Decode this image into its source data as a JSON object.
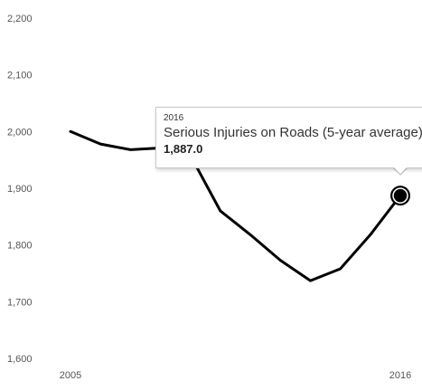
{
  "chart_data": {
    "type": "line",
    "x": [
      2005,
      2006,
      2007,
      2008,
      2009,
      2010,
      2011,
      2012,
      2013,
      2014,
      2015,
      2016
    ],
    "series": [
      {
        "name": "Serious Injuries on Roads (5-year average)",
        "values": [
          2000,
          1978,
          1968,
          1971,
          1958,
          1860,
          1818,
          1773,
          1737,
          1758,
          1818,
          1887
        ],
        "color": "#000000"
      }
    ],
    "y_ticks": [
      "2,200",
      "2,100",
      "2,000",
      "1,900",
      "1,800",
      "1,700",
      "1,600"
    ],
    "x_ticks": [
      "2005",
      "2016"
    ],
    "ylim": [
      1600,
      2200
    ],
    "xlim": [
      2005,
      2016
    ],
    "grid": false,
    "highlight": {
      "x": 2016,
      "value": 1887
    }
  },
  "tooltip": {
    "year": "2016",
    "series_label": "Serious Injuries on Roads (5-year average):",
    "value": "1,887.0"
  }
}
